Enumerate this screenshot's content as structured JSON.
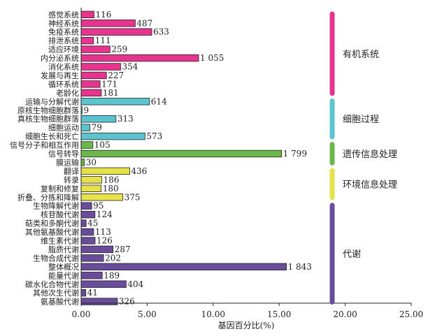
{
  "chart_data": {
    "type": "bar",
    "orientation": "horizontal",
    "xlabel": "基因百分比(%)",
    "xlim": [
      0,
      25
    ],
    "xticks": [
      "0.00",
      "5.00",
      "10.00",
      "15.00",
      "20.00",
      "25.00"
    ],
    "grid": false,
    "categories": [
      "感觉系统",
      "神经系统",
      "免疫系统",
      "排泄系统",
      "适应环境",
      "内分泌系统",
      "消化系统",
      "发展与再生",
      "循环系统",
      "老龄化",
      "运输与分解代谢",
      "原核生物细胞群落",
      "真核生物细胞群落",
      "细胞运动",
      "细胞生长和死亡",
      "信号分子和相互作用",
      "信号转导",
      "膜运输",
      "翻译",
      "转录",
      "复制和修复",
      "折叠、分拣和降解",
      "生物降解代谢",
      "核苷酸代谢",
      "萜类和多酮代谢",
      "其他氨基酸代谢",
      "维生素代谢",
      "脂质代谢",
      "生物合成代谢",
      "整体概况",
      "能量代谢",
      "碳水化合物代谢",
      "其他次生代谢",
      "氨基酸代谢"
    ],
    "values": [
      0.98,
      4.1,
      5.35,
      0.94,
      2.19,
      8.9,
      2.99,
      1.92,
      1.44,
      1.53,
      5.18,
      0.08,
      2.64,
      0.67,
      4.84,
      0.89,
      15.18,
      0.25,
      3.68,
      1.57,
      1.52,
      3.16,
      0.8,
      1.05,
      0.38,
      0.95,
      1.06,
      2.42,
      1.7,
      15.55,
      1.6,
      3.41,
      0.35,
      2.75
    ],
    "value_labels": [
      "116",
      "487",
      "633",
      "111",
      "259",
      "1 055",
      "354",
      "227",
      "171",
      "181",
      "614",
      "9",
      "313",
      "79",
      "573",
      "105",
      "1 799",
      "30",
      "436",
      "186",
      "180",
      "375",
      "95",
      "124",
      "45",
      "113",
      "126",
      "287",
      "202",
      "1 843",
      "189",
      "404",
      "41",
      "326"
    ],
    "groups": [
      {
        "name": "有机系统",
        "count": 10,
        "color": "#e8338f"
      },
      {
        "name": "细胞过程",
        "count": 5,
        "color": "#5bc4cf"
      },
      {
        "name": "遗传信息处理",
        "count": 3,
        "color": "#6ab84a"
      },
      {
        "name": "环境信息处理",
        "count": 4,
        "color": "#e6e34a"
      },
      {
        "name": "代谢",
        "count": 12,
        "color": "#6a4c9c"
      }
    ],
    "bar_colors": [
      "#e8338f",
      "#e8338f",
      "#e8338f",
      "#e8338f",
      "#e8338f",
      "#e8338f",
      "#e8338f",
      "#e8338f",
      "#e8338f",
      "#e8338f",
      "#5bc4cf",
      "#5bc4cf",
      "#5bc4cf",
      "#5bc4cf",
      "#5bc4cf",
      "#6ab84a",
      "#6ab84a",
      "#6ab84a",
      "#e6e34a",
      "#e6e34a",
      "#e6e34a",
      "#e6e34a",
      "#6a4c9c",
      "#6a4c9c",
      "#6a4c9c",
      "#6a4c9c",
      "#6a4c9c",
      "#6a4c9c",
      "#6a4c9c",
      "#6a4c9c",
      "#6a4c9c",
      "#6a4c9c",
      "#6a4c9c",
      "#6a4c9c"
    ]
  }
}
